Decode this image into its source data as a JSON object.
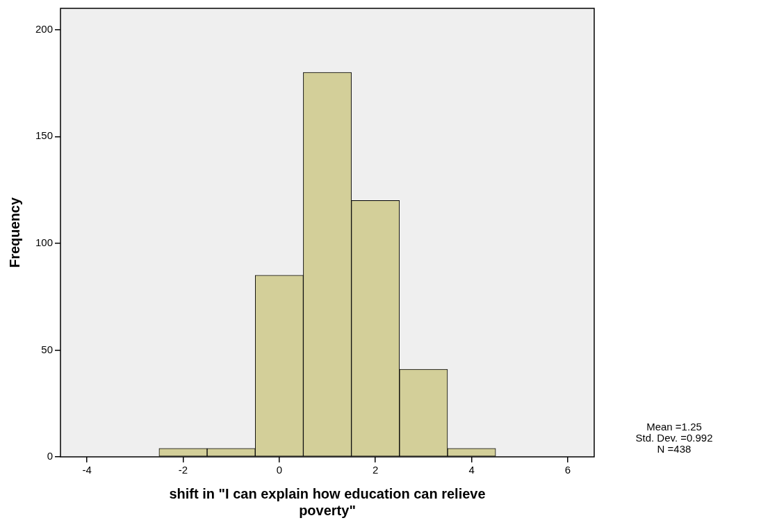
{
  "chart_data": {
    "type": "histogram",
    "xlabel": "shift in \"I can explain how education can relieve poverty\"",
    "ylabel": "Frequency",
    "bins": [
      -2.5,
      -1.5,
      -0.5,
      0.5,
      1.5,
      2.5,
      3.5,
      4.5
    ],
    "values": [
      4,
      4,
      85,
      180,
      120,
      41,
      4
    ],
    "color": "#d3cf99",
    "xlim": [
      -4.55,
      6.55
    ],
    "xticks": [
      -4,
      -2,
      0,
      2,
      4,
      6
    ],
    "ylim": [
      0,
      210
    ],
    "yticks": [
      0,
      50,
      100,
      150,
      200
    ],
    "grid": false,
    "annotations": [
      "Mean =1.25",
      "Std. Dev. =0.992",
      "N =438"
    ]
  }
}
